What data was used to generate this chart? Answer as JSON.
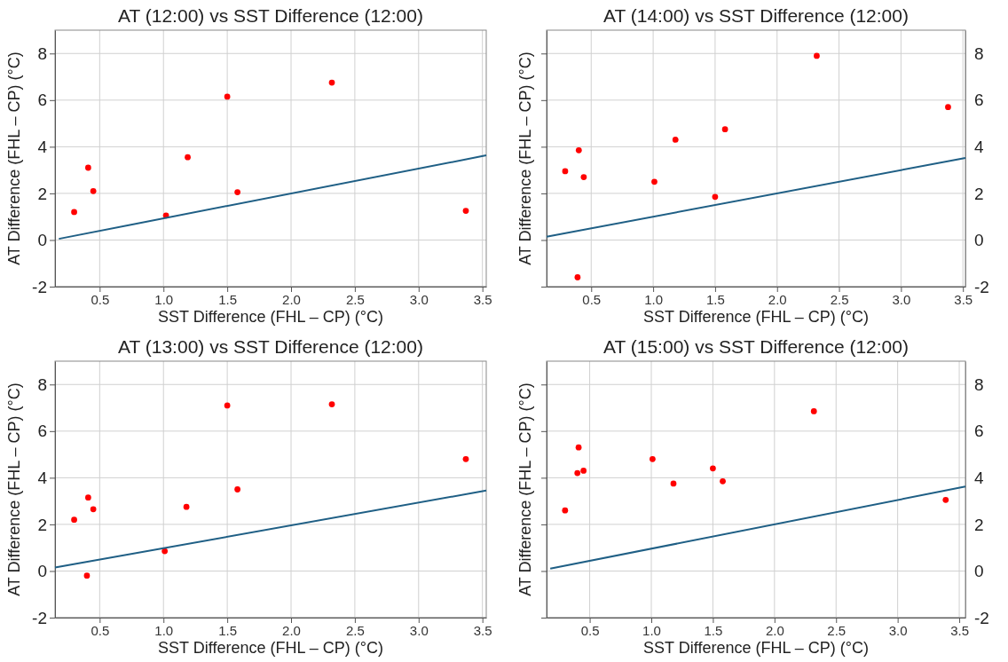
{
  "chart_data": [
    {
      "type": "scatter",
      "title": "AT (12:00) vs SST Difference (12:00)",
      "xlabel": "SST Difference (FHL – CP) (°C)",
      "ylabel": "AT Difference (FHL – CP) (°C)",
      "xlim": [
        0.15,
        3.53
      ],
      "xticks": [
        0.5,
        {
          "value": 1,
          "label": "1.0"
        },
        1.5,
        {
          "value": 2,
          "label": "2.0"
        },
        2.5,
        {
          "value": 3,
          "label": "3.0"
        },
        3.5
      ],
      "ylim": [
        -2,
        9
      ],
      "yticks": [
        -2,
        0,
        2,
        4,
        6,
        8
      ],
      "grid": true,
      "series": [
        {
          "type": "scatter",
          "marker": "circle",
          "color": "#ff0000",
          "x": [
            0.3,
            0.41,
            0.45,
            1.02,
            1.19,
            1.5,
            1.58,
            2.32,
            3.37
          ],
          "values": [
            1.2,
            3.1,
            2.1,
            1.05,
            3.55,
            6.15,
            2.05,
            6.75,
            1.25
          ]
        },
        {
          "type": "line",
          "color": "#1f5f85",
          "x": [
            0.18,
            3.53
          ],
          "values": [
            0.05,
            3.63
          ]
        }
      ]
    },
    {
      "type": "scatter",
      "title": "AT (14:00) vs SST Difference (12:00)",
      "xlabel": "SST Difference (FHL – CP) (°C)",
      "ylabel": "AT Difference (FHL – CP) (°C)",
      "xlim": [
        0.14,
        3.52
      ],
      "xticks": [
        0.5,
        {
          "value": 1,
          "label": "1.0"
        },
        1.5,
        {
          "value": 2,
          "label": "2.0"
        },
        2.5,
        {
          "value": 3,
          "label": "3.0"
        },
        3.5
      ],
      "y2lim": [
        -2,
        9
      ],
      "y2ticks": [
        -2,
        0,
        2,
        4,
        6,
        8
      ],
      "grid": true,
      "series": [
        {
          "type": "scatter",
          "marker": "circle",
          "color": "#ff0000",
          "axis": "y2",
          "x": [
            0.29,
            0.4,
            0.44,
            0.39,
            1.01,
            1.18,
            1.5,
            1.58,
            2.32,
            3.38
          ],
          "values": [
            2.95,
            3.85,
            2.7,
            -1.6,
            2.5,
            4.3,
            1.85,
            4.75,
            7.9,
            5.7
          ]
        },
        {
          "type": "line",
          "color": "#1f5f85",
          "axis": "y2",
          "x": [
            0.14,
            3.52
          ],
          "values": [
            0.14,
            3.52
          ]
        }
      ]
    },
    {
      "type": "scatter",
      "title": "AT (13:00) vs SST Difference (12:00)",
      "xlabel": "SST Difference (FHL – CP) (°C)",
      "ylabel": "AT Difference (FHL – CP) (°C)",
      "xlim": [
        0.15,
        3.53
      ],
      "xticks": [
        0.5,
        {
          "value": 1,
          "label": "1.0"
        },
        1.5,
        {
          "value": 2,
          "label": "2.0"
        },
        2.5,
        {
          "value": 3,
          "label": "3.0"
        },
        3.5
      ],
      "ylim": [
        -2,
        9
      ],
      "yticks": [
        -2,
        0,
        2,
        4,
        6,
        8
      ],
      "grid": true,
      "series": [
        {
          "type": "scatter",
          "marker": "circle",
          "color": "#ff0000",
          "x": [
            0.3,
            0.41,
            0.45,
            0.4,
            1.01,
            1.18,
            1.5,
            1.58,
            2.32,
            3.37
          ],
          "values": [
            2.2,
            3.15,
            2.65,
            -0.2,
            0.85,
            2.75,
            7.1,
            3.5,
            7.15,
            4.8
          ]
        },
        {
          "type": "line",
          "color": "#1f5f85",
          "x": [
            0.15,
            3.53
          ],
          "values": [
            0.15,
            3.45
          ]
        }
      ]
    },
    {
      "type": "scatter",
      "title": "AT (15:00) vs SST Difference (12:00)",
      "xlabel": "SST Difference (FHL – CP) (°C)",
      "ylabel": "AT Difference (FHL – CP) (°C)",
      "xlim": [
        0.15,
        3.55
      ],
      "xticks": [
        0.5,
        {
          "value": 1,
          "label": "1.0"
        },
        1.5,
        {
          "value": 2,
          "label": "2.0"
        },
        2.5,
        {
          "value": 3,
          "label": "3.0"
        },
        3.5
      ],
      "y2lim": [
        -2,
        9
      ],
      "y2ticks": [
        -2,
        0,
        2,
        4,
        6,
        8
      ],
      "grid": true,
      "series": [
        {
          "type": "scatter",
          "marker": "circle",
          "color": "#ff0000",
          "axis": "y2",
          "x": [
            0.3,
            0.41,
            0.4,
            0.45,
            1.01,
            1.18,
            1.5,
            1.58,
            2.32,
            3.39
          ],
          "values": [
            2.6,
            5.3,
            4.2,
            4.3,
            4.8,
            3.75,
            4.4,
            3.85,
            6.85,
            3.05
          ]
        },
        {
          "type": "line",
          "color": "#1f5f85",
          "axis": "y2",
          "x": [
            0.18,
            3.55
          ],
          "values": [
            0.1,
            3.62
          ]
        }
      ]
    }
  ]
}
